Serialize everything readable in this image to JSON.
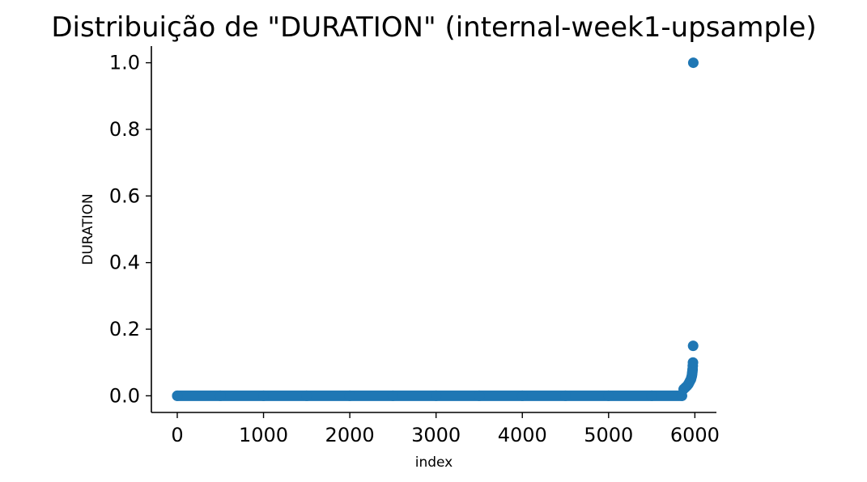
{
  "chart_data": {
    "type": "scatter",
    "title": "Distribuição de \"DURATION\" (internal-week1-upsample)",
    "xlabel": "index",
    "ylabel": "DURATION",
    "xlim": [
      -300,
      6250
    ],
    "ylim": [
      -0.05,
      1.05
    ],
    "xticks": [
      0,
      1000,
      2000,
      3000,
      4000,
      5000,
      6000
    ],
    "xtick_labels": [
      "0",
      "1000",
      "2000",
      "3000",
      "4000",
      "5000",
      "6000"
    ],
    "yticks": [
      0.0,
      0.2,
      0.4,
      0.6,
      0.8,
      1.0
    ],
    "ytick_labels": [
      "0.0",
      "0.2",
      "0.4",
      "0.6",
      "0.8",
      "1.0"
    ],
    "grid": false,
    "legend": false,
    "point_color": "#1f77b4",
    "series": [
      {
        "points": [
          {
            "x": 0,
            "y": 0.0
          },
          {
            "x": 500,
            "y": 0.0
          },
          {
            "x": 1000,
            "y": 0.0
          },
          {
            "x": 1500,
            "y": 0.0
          },
          {
            "x": 2000,
            "y": 0.0
          },
          {
            "x": 2500,
            "y": 0.0
          },
          {
            "x": 3000,
            "y": 0.0
          },
          {
            "x": 3500,
            "y": 0.0
          },
          {
            "x": 4000,
            "y": 0.0
          },
          {
            "x": 4500,
            "y": 0.0
          },
          {
            "x": 5000,
            "y": 0.0
          },
          {
            "x": 5500,
            "y": 0.0
          },
          {
            "x": 5850,
            "y": 0.0
          },
          {
            "x": 5870,
            "y": 0.02
          },
          {
            "x": 5890,
            "y": 0.025
          },
          {
            "x": 5910,
            "y": 0.03
          },
          {
            "x": 5925,
            "y": 0.035
          },
          {
            "x": 5935,
            "y": 0.04
          },
          {
            "x": 5945,
            "y": 0.045
          },
          {
            "x": 5955,
            "y": 0.05
          },
          {
            "x": 5960,
            "y": 0.055
          },
          {
            "x": 5965,
            "y": 0.06
          },
          {
            "x": 5968,
            "y": 0.065
          },
          {
            "x": 5970,
            "y": 0.07
          },
          {
            "x": 5972,
            "y": 0.075
          },
          {
            "x": 5974,
            "y": 0.08
          },
          {
            "x": 5976,
            "y": 0.09
          },
          {
            "x": 5978,
            "y": 0.1
          },
          {
            "x": 5980,
            "y": 0.15
          },
          {
            "x": 5982,
            "y": 1.0
          }
        ]
      }
    ]
  }
}
